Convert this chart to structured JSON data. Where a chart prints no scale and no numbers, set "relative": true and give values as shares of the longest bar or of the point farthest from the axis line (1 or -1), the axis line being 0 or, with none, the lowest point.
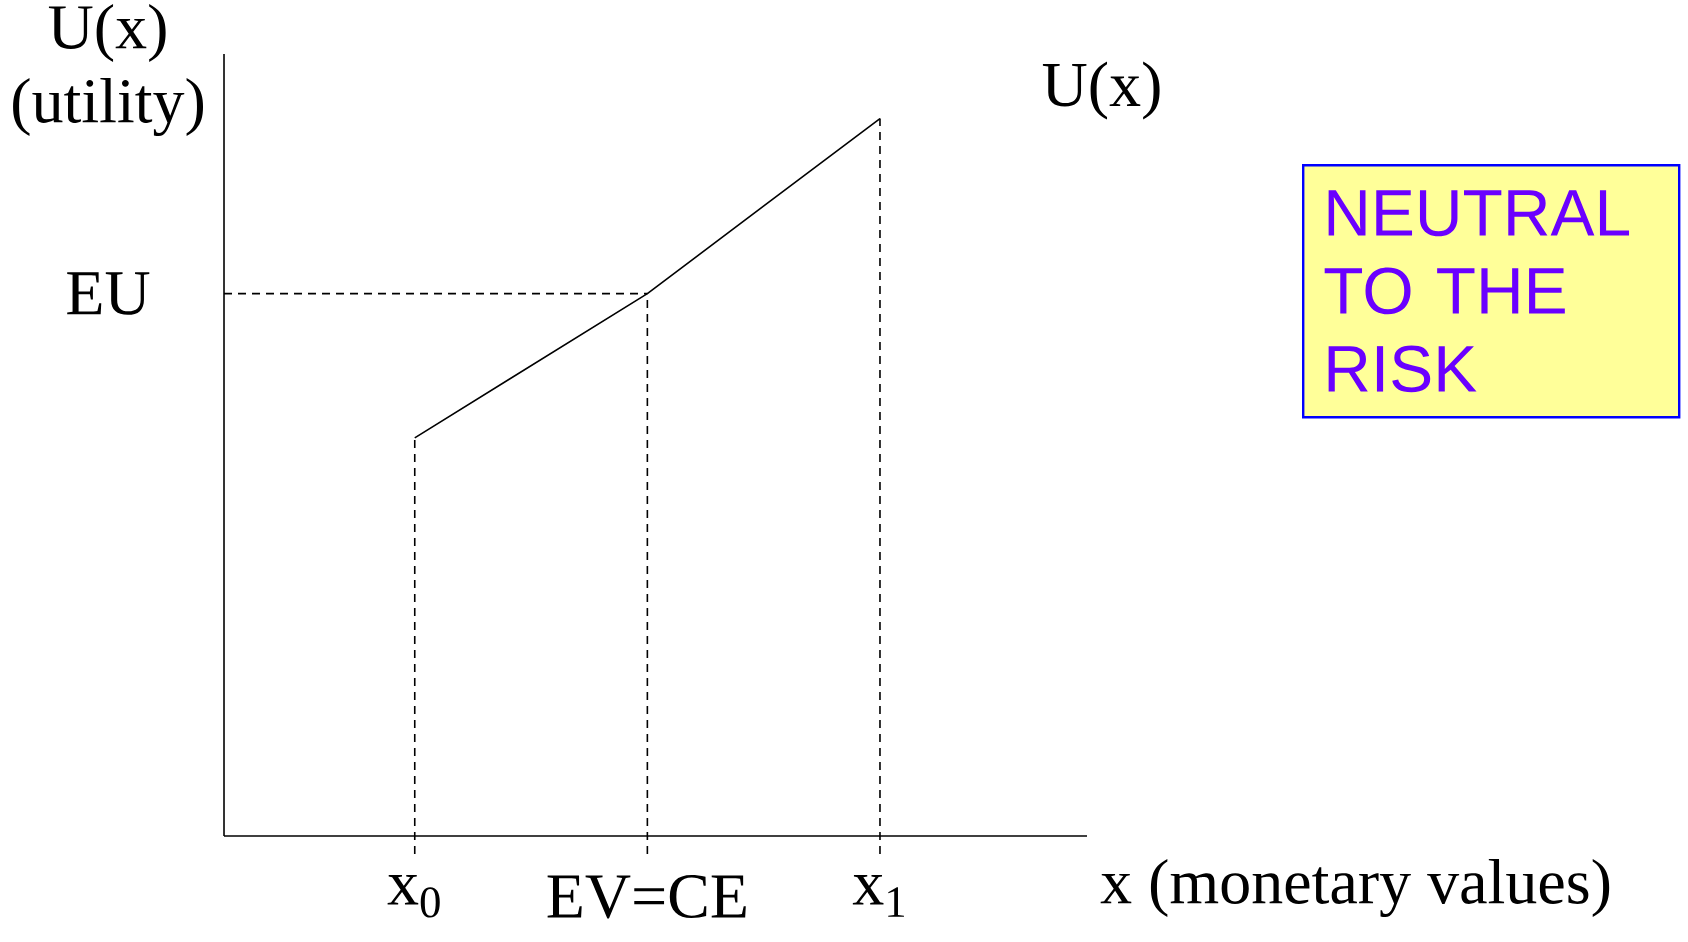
{
  "chart_data": {
    "type": "line",
    "relative": true,
    "xlabel": "x (monetary values)",
    "ylabel": "U(x) (utility)",
    "categories": [
      "x$_{0}$",
      "EV=CE",
      "x$_{1}$"
    ],
    "series": [
      {
        "name": "U(x)",
        "color": "#000000",
        "values": [
          0.555,
          0.756,
          1
        ]
      }
    ],
    "ref_lines": [
      {
        "axis": "y",
        "value": 0.756,
        "label": "EU",
        "line_style": "dashed",
        "color": "#000000"
      },
      {
        "axis": "x",
        "value": "x$_{0}$",
        "line_style": "dashed",
        "color": "#000000"
      },
      {
        "axis": "x",
        "value": "EV=CE",
        "line_style": "dashed",
        "color": "#000000"
      },
      {
        "axis": "x",
        "value": "x$_{1}$",
        "line_style": "dashed",
        "color": "#000000"
      }
    ],
    "annotations": [
      "NEUTRAL TO THE RISK"
    ]
  }
}
